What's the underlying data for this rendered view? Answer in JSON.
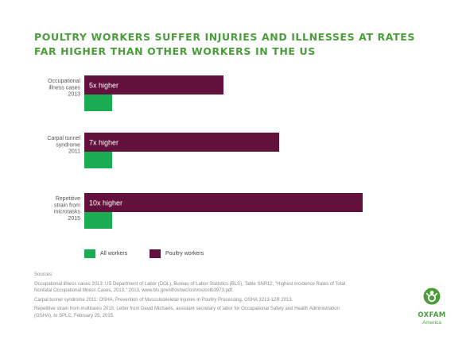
{
  "title_lines": [
    "POULTRY WORKERS SUFFER INJURIES AND ILLNESSES AT RATES",
    "FAR HIGHER THAN OTHER WORKERS IN THE US"
  ],
  "colors": {
    "title": "#4a9d3a",
    "all_workers": "#1aab53",
    "poultry_workers": "#64103c",
    "bar_text": "#ffffff",
    "logo": "#4a9d3a"
  },
  "chart_data": {
    "type": "bar",
    "orientation": "horizontal",
    "categories": [
      [
        "Occupational",
        "illness cases",
        "2013"
      ],
      [
        "Carpal tunnel",
        "syndrome",
        "2011"
      ],
      [
        "Repetitive",
        "strain from",
        "microtasks",
        "2015"
      ]
    ],
    "series": [
      {
        "name": "Poultry workers",
        "values": [
          5,
          7,
          10
        ],
        "labels": [
          "5x higher",
          "7x higher",
          "10x higher"
        ]
      },
      {
        "name": "All workers",
        "values": [
          1,
          1,
          1
        ]
      }
    ],
    "value_unit": "times the rate of all workers",
    "xlim": [
      0,
      10
    ],
    "grid": false,
    "legend_position": "bottom-left"
  },
  "legend": [
    {
      "label": "All workers"
    },
    {
      "label": "Poultry workers"
    }
  ],
  "sources": {
    "heading": "Sources:",
    "entries": [
      "Occupational illness cases 2013: US Department of Labor (DOL), Bureau of Labor Statistics (BLS), Table SNR12, \"Highest Incidence Rates of Total Nonfatal Occupational Illness Cases, 2013,\" 2013, www.bls.gov/iif/oshwc/osh/os/ostb3973.pdf.",
      "Carpal tunnel syndrome 2011: OSHA, Prevention of Musculoskeletal Injuries in Poultry Processing, OSHA 3213-12R 2013.",
      "Repetitive strain from multitasks 2015: Letter from David Michaels, assistant secretary of labor for Occupational Safety and Health Administration (OSHA), to SPLC, February 25, 2015."
    ]
  },
  "logo": {
    "icon": "oxfam-person-icon",
    "name": "OXFAM",
    "sub": "America"
  }
}
